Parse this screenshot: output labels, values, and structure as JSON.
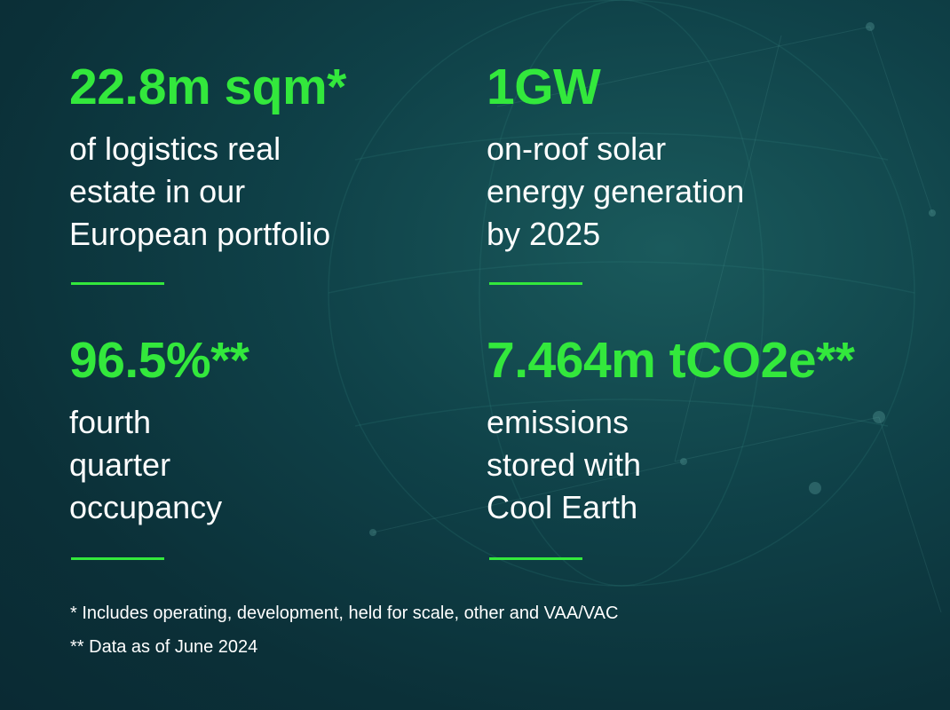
{
  "stats": [
    {
      "value": "22.8m sqm*",
      "lines": [
        "of logistics real",
        "estate in our",
        "European portfolio"
      ]
    },
    {
      "value": "1GW",
      "lines": [
        "on-roof solar",
        "energy generation",
        "by 2025"
      ]
    },
    {
      "value": "96.5%**",
      "lines": [
        "fourth",
        "quarter",
        "occupancy"
      ]
    },
    {
      "value": "7.464m tCO2e**",
      "lines": [
        "emissions",
        "stored with",
        "Cool Earth"
      ]
    }
  ],
  "footnotes": [
    "* Includes operating, development, held for scale, other and VAA/VAC",
    "** Data as of June 2024"
  ]
}
